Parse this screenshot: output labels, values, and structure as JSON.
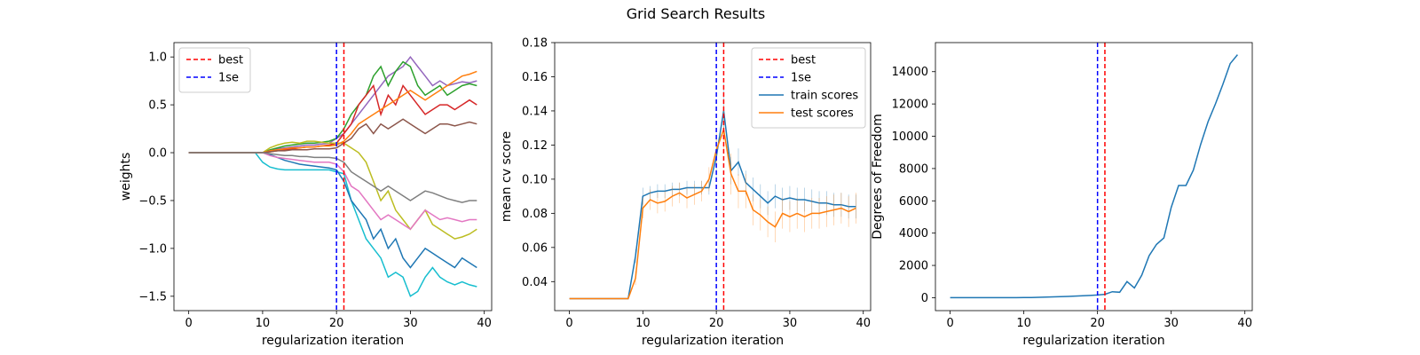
{
  "figure": {
    "title": "Grid Search Results"
  },
  "chart_data": [
    {
      "type": "line",
      "title": "",
      "xlabel": "regularization iteration",
      "ylabel": "weights",
      "xlim": [
        -2,
        41
      ],
      "ylim": [
        -1.65,
        1.15
      ],
      "xticks": [
        0,
        10,
        20,
        30,
        40
      ],
      "yticks": [
        -1.5,
        -1.0,
        -0.5,
        0.0,
        0.5,
        1.0
      ],
      "ytick_labels": [
        "−1.5",
        "−1.0",
        "−0.5",
        "0.0",
        "0.5",
        "1.0"
      ],
      "legend_position": "top-left",
      "legend": [
        {
          "name": "best",
          "color": "#ff0000",
          "dashed": true
        },
        {
          "name": "1se",
          "color": "#0000ff",
          "dashed": true
        }
      ],
      "vlines": [
        {
          "x": 21,
          "color": "#ff0000"
        },
        {
          "x": 20,
          "color": "#0000ff"
        }
      ],
      "note": "many weight paths (one per feature) starting at 0 and diverging after iteration ~10",
      "series": [
        {
          "color": "#17becf",
          "values": [
            0,
            0,
            0,
            0,
            0,
            0,
            0,
            0,
            0,
            0,
            -0.1,
            -0.15,
            -0.17,
            -0.18,
            -0.18,
            -0.18,
            -0.18,
            -0.18,
            -0.18,
            -0.18,
            -0.2,
            -0.22,
            -0.5,
            -0.7,
            -0.9,
            -1.0,
            -1.1,
            -1.3,
            -1.25,
            -1.3,
            -1.5,
            -1.45,
            -1.3,
            -1.2,
            -1.3,
            -1.35,
            -1.38,
            -1.35,
            -1.38,
            -1.4
          ]
        },
        {
          "color": "#9467bd",
          "values": [
            0,
            0,
            0,
            0,
            0,
            0,
            0,
            0,
            0,
            0,
            0,
            0.02,
            0.04,
            0.05,
            0.06,
            0.07,
            0.08,
            0.08,
            0.09,
            0.1,
            0.15,
            0.2,
            0.3,
            0.4,
            0.5,
            0.6,
            0.7,
            0.8,
            0.85,
            0.9,
            1.0,
            0.9,
            0.8,
            0.7,
            0.75,
            0.7,
            0.72,
            0.74,
            0.73,
            0.75
          ]
        },
        {
          "color": "#2ca02c",
          "values": [
            0,
            0,
            0,
            0,
            0,
            0,
            0,
            0,
            0,
            0,
            0,
            0.03,
            0.05,
            0.07,
            0.08,
            0.09,
            0.1,
            0.1,
            0.11,
            0.12,
            0.15,
            0.25,
            0.4,
            0.5,
            0.6,
            0.8,
            0.9,
            0.7,
            0.85,
            0.95,
            0.9,
            0.7,
            0.6,
            0.65,
            0.7,
            0.6,
            0.65,
            0.7,
            0.72,
            0.7
          ]
        },
        {
          "color": "#d62728",
          "values": [
            0,
            0,
            0,
            0,
            0,
            0,
            0,
            0,
            0,
            0,
            0,
            0.01,
            0.02,
            0.03,
            0.04,
            0.05,
            0.06,
            0.06,
            0.07,
            0.08,
            0.1,
            0.2,
            0.3,
            0.5,
            0.6,
            0.7,
            0.4,
            0.6,
            0.5,
            0.7,
            0.6,
            0.5,
            0.4,
            0.45,
            0.5,
            0.5,
            0.45,
            0.5,
            0.55,
            0.5
          ]
        },
        {
          "color": "#bcbd22",
          "values": [
            0,
            0,
            0,
            0,
            0,
            0,
            0,
            0,
            0,
            0,
            0,
            0.05,
            0.08,
            0.1,
            0.11,
            0.1,
            0.12,
            0.12,
            0.11,
            0.1,
            0.1,
            0.1,
            0.05,
            0.0,
            -0.1,
            -0.3,
            -0.5,
            -0.4,
            -0.6,
            -0.7,
            -0.8,
            -0.7,
            -0.6,
            -0.75,
            -0.8,
            -0.85,
            -0.9,
            -0.88,
            -0.85,
            -0.8
          ]
        },
        {
          "color": "#1f77b4",
          "values": [
            0,
            0,
            0,
            0,
            0,
            0,
            0,
            0,
            0,
            0,
            0,
            -0.02,
            -0.05,
            -0.08,
            -0.1,
            -0.12,
            -0.13,
            -0.14,
            -0.15,
            -0.16,
            -0.18,
            -0.3,
            -0.5,
            -0.6,
            -0.7,
            -0.9,
            -0.8,
            -1.0,
            -0.9,
            -1.1,
            -1.2,
            -1.1,
            -1.0,
            -1.05,
            -1.1,
            -1.15,
            -1.2,
            -1.1,
            -1.15,
            -1.2
          ]
        },
        {
          "color": "#e377c2",
          "values": [
            0,
            0,
            0,
            0,
            0,
            0,
            0,
            0,
            0,
            0,
            0,
            -0.03,
            -0.05,
            -0.06,
            -0.07,
            -0.08,
            -0.09,
            -0.1,
            -0.1,
            -0.1,
            -0.12,
            -0.2,
            -0.35,
            -0.4,
            -0.5,
            -0.6,
            -0.7,
            -0.65,
            -0.7,
            -0.75,
            -0.8,
            -0.7,
            -0.6,
            -0.65,
            -0.7,
            -0.68,
            -0.7,
            -0.72,
            -0.7,
            -0.7
          ]
        },
        {
          "color": "#ff7f0e",
          "values": [
            0,
            0,
            0,
            0,
            0,
            0,
            0,
            0,
            0,
            0,
            0,
            0.02,
            0.03,
            0.04,
            0.05,
            0.05,
            0.06,
            0.06,
            0.07,
            0.07,
            0.08,
            0.12,
            0.2,
            0.3,
            0.35,
            0.4,
            0.45,
            0.5,
            0.55,
            0.6,
            0.65,
            0.6,
            0.55,
            0.6,
            0.65,
            0.7,
            0.75,
            0.8,
            0.82,
            0.85
          ]
        },
        {
          "color": "#8c564b",
          "values": [
            0,
            0,
            0,
            0,
            0,
            0,
            0,
            0,
            0,
            0,
            0,
            0.01,
            0.02,
            0.02,
            0.03,
            0.03,
            0.03,
            0.04,
            0.04,
            0.04,
            0.05,
            0.1,
            0.15,
            0.25,
            0.3,
            0.2,
            0.3,
            0.25,
            0.3,
            0.35,
            0.3,
            0.25,
            0.2,
            0.25,
            0.3,
            0.3,
            0.28,
            0.3,
            0.32,
            0.3
          ]
        },
        {
          "color": "#7f7f7f",
          "values": [
            0,
            0,
            0,
            0,
            0,
            0,
            0,
            0,
            0,
            0,
            0,
            -0.01,
            -0.02,
            -0.03,
            -0.03,
            -0.04,
            -0.04,
            -0.05,
            -0.05,
            -0.05,
            -0.06,
            -0.1,
            -0.2,
            -0.25,
            -0.3,
            -0.35,
            -0.4,
            -0.35,
            -0.4,
            -0.45,
            -0.5,
            -0.45,
            -0.4,
            -0.42,
            -0.45,
            -0.48,
            -0.5,
            -0.52,
            -0.5,
            -0.5
          ]
        }
      ]
    },
    {
      "type": "line",
      "title": "",
      "xlabel": "regularization iteration",
      "ylabel": "mean cv score",
      "xlim": [
        -2,
        41
      ],
      "ylim": [
        0.023,
        0.18
      ],
      "xticks": [
        0,
        10,
        20,
        30,
        40
      ],
      "yticks": [
        0.04,
        0.06,
        0.08,
        0.1,
        0.12,
        0.14,
        0.16,
        0.18
      ],
      "ytick_labels": [
        "0.04",
        "0.06",
        "0.08",
        "0.10",
        "0.12",
        "0.14",
        "0.16",
        "0.18"
      ],
      "legend_position": "top-right",
      "legend": [
        {
          "name": "best",
          "color": "#ff0000",
          "dashed": true
        },
        {
          "name": "1se",
          "color": "#0000ff",
          "dashed": true
        },
        {
          "name": "train scores",
          "color": "#1f77b4",
          "dashed": false
        },
        {
          "name": "test scores",
          "color": "#ff7f0e",
          "dashed": false
        }
      ],
      "vlines": [
        {
          "x": 21,
          "color": "#ff0000"
        },
        {
          "x": 20,
          "color": "#0000ff"
        }
      ],
      "series": [
        {
          "name": "train scores",
          "color": "#1f77b4",
          "x": [
            0,
            1,
            2,
            3,
            4,
            5,
            6,
            7,
            8,
            9,
            10,
            11,
            12,
            13,
            14,
            15,
            16,
            17,
            18,
            19,
            20,
            21,
            22,
            23,
            24,
            25,
            26,
            27,
            28,
            29,
            30,
            31,
            32,
            33,
            34,
            35,
            36,
            37,
            38,
            39
          ],
          "values": [
            0.03,
            0.03,
            0.03,
            0.03,
            0.03,
            0.03,
            0.03,
            0.03,
            0.03,
            0.055,
            0.09,
            0.092,
            0.093,
            0.093,
            0.094,
            0.094,
            0.095,
            0.095,
            0.095,
            0.095,
            0.113,
            0.14,
            0.105,
            0.11,
            0.098,
            0.094,
            0.09,
            0.086,
            0.09,
            0.088,
            0.089,
            0.088,
            0.088,
            0.087,
            0.086,
            0.086,
            0.085,
            0.085,
            0.084,
            0.084
          ],
          "err": [
            0,
            0,
            0,
            0,
            0,
            0,
            0,
            0,
            0,
            0.004,
            0.005,
            0.004,
            0.004,
            0.004,
            0.004,
            0.004,
            0.004,
            0.004,
            0.004,
            0.004,
            0.012,
            0.016,
            0.008,
            0.008,
            0.007,
            0.007,
            0.007,
            0.007,
            0.007,
            0.007,
            0.007,
            0.007,
            0.007,
            0.007,
            0.007,
            0.007,
            0.007,
            0.007,
            0.007,
            0.007
          ]
        },
        {
          "name": "test scores",
          "color": "#ff7f0e",
          "x": [
            0,
            1,
            2,
            3,
            4,
            5,
            6,
            7,
            8,
            9,
            10,
            11,
            12,
            13,
            14,
            15,
            16,
            17,
            18,
            19,
            20,
            21,
            22,
            23,
            24,
            25,
            26,
            27,
            28,
            29,
            30,
            31,
            32,
            33,
            34,
            35,
            36,
            37,
            38,
            39
          ],
          "values": [
            0.03,
            0.03,
            0.03,
            0.03,
            0.03,
            0.03,
            0.03,
            0.03,
            0.03,
            0.042,
            0.083,
            0.088,
            0.086,
            0.087,
            0.09,
            0.092,
            0.089,
            0.091,
            0.093,
            0.1,
            0.117,
            0.129,
            0.103,
            0.093,
            0.093,
            0.082,
            0.079,
            0.075,
            0.072,
            0.08,
            0.078,
            0.08,
            0.078,
            0.08,
            0.08,
            0.081,
            0.082,
            0.083,
            0.081,
            0.083
          ],
          "err": [
            0,
            0,
            0,
            0,
            0,
            0,
            0,
            0,
            0,
            0.004,
            0.006,
            0.006,
            0.006,
            0.006,
            0.006,
            0.006,
            0.006,
            0.006,
            0.006,
            0.007,
            0.01,
            0.014,
            0.012,
            0.01,
            0.01,
            0.009,
            0.009,
            0.009,
            0.009,
            0.009,
            0.009,
            0.009,
            0.009,
            0.009,
            0.009,
            0.009,
            0.009,
            0.009,
            0.009,
            0.009
          ]
        }
      ]
    },
    {
      "type": "line",
      "title": "",
      "xlabel": "regularization iteration",
      "ylabel": "Degrees of Freedom",
      "xlim": [
        -2,
        41
      ],
      "ylim": [
        -800,
        15800
      ],
      "xticks": [
        0,
        10,
        20,
        30,
        40
      ],
      "yticks": [
        0,
        2000,
        4000,
        6000,
        8000,
        10000,
        12000,
        14000
      ],
      "ytick_labels": [
        "0",
        "2000",
        "4000",
        "6000",
        "8000",
        "10000",
        "12000",
        "14000"
      ],
      "legend_position": "",
      "legend": [],
      "vlines": [
        {
          "x": 21,
          "color": "#ff0000"
        },
        {
          "x": 20,
          "color": "#0000ff"
        }
      ],
      "series": [
        {
          "color": "#1f77b4",
          "x": [
            0,
            1,
            2,
            3,
            4,
            5,
            6,
            7,
            8,
            9,
            10,
            11,
            12,
            13,
            14,
            15,
            16,
            17,
            18,
            19,
            20,
            21,
            22,
            23,
            24,
            25,
            26,
            27,
            28,
            29,
            30,
            31,
            32,
            33,
            34,
            35,
            36,
            37,
            38,
            39
          ],
          "values": [
            0,
            0,
            0,
            0,
            0,
            0,
            0,
            0,
            2,
            5,
            10,
            15,
            25,
            35,
            50,
            65,
            80,
            100,
            120,
            140,
            170,
            210,
            370,
            340,
            1000,
            600,
            1400,
            2600,
            3300,
            3700,
            5600,
            6950,
            6950,
            7900,
            9500,
            10900,
            12000,
            13200,
            14500,
            15050
          ]
        }
      ]
    }
  ]
}
